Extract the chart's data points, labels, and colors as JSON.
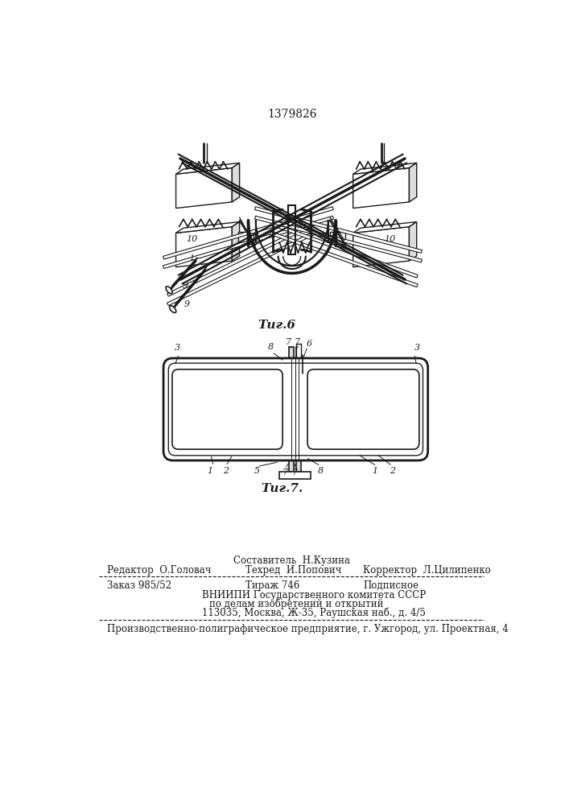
{
  "patent_number": "1379826",
  "fig6_label": "Τиг.6",
  "fig7_label": "Τиг.7.",
  "background_color": "#ffffff",
  "line_color": "#1a1a1a",
  "footer": {
    "sostavitel": "Составитель  Н.Кузина",
    "tehred": "Техред  И.Попович",
    "redaktor": "Редактор  О.Головач",
    "korrektor": "Корректор  Л.Цилипенко",
    "order": "Заказ 985/52",
    "tirage": "Тираж 746",
    "podpisnoe": "Подписное",
    "vniiipi": "ВНИИПИ Государственного комитета СССР",
    "po_delam": "по делам изобретений и открытий",
    "address": "113035, Москва, Ж-35, Раушская наб., д. 4/5",
    "proizv": "Производственно-полиграфическое предприятие, г. Ужгород, ул. Проектная, 4"
  }
}
